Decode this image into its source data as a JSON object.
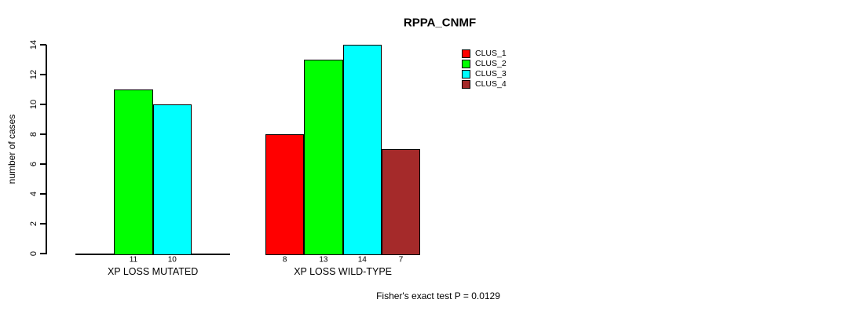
{
  "chart_data": {
    "type": "bar",
    "title": "RPPA_CNMF",
    "ylabel": "number of cases",
    "xlabel": "",
    "ylim": [
      0,
      14
    ],
    "yticks": [
      0,
      2,
      4,
      6,
      8,
      10,
      12,
      14
    ],
    "categories": [
      "XP LOSS MUTATED",
      "XP LOSS WILD-TYPE"
    ],
    "series": [
      {
        "name": "CLUS_1",
        "color": "#ff0000",
        "values": [
          0,
          8
        ]
      },
      {
        "name": "CLUS_2",
        "color": "#00ff00",
        "values": [
          11,
          13
        ]
      },
      {
        "name": "CLUS_3",
        "color": "#00ffff",
        "values": [
          10,
          14
        ]
      },
      {
        "name": "CLUS_4",
        "color": "#a52a2a",
        "values": [
          0,
          7
        ]
      }
    ],
    "bar_value_labels_shown": true,
    "zero_value_bars_hidden": true,
    "grid": false,
    "legend_position": "top-right",
    "legend_entries": [
      "CLUS_1",
      "CLUS_2",
      "CLUS_3",
      "CLUS_4"
    ],
    "annotation": "Fisher's exact test P = 0.0129",
    "background_color": "#ffffff",
    "axis_color": "#000000"
  }
}
